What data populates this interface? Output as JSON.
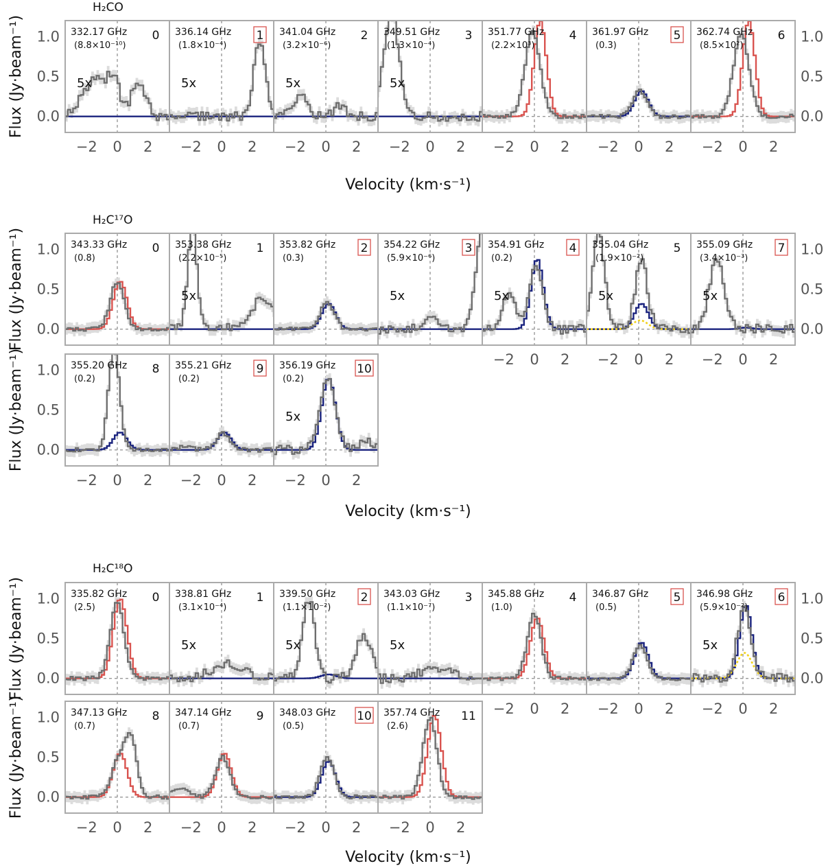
{
  "figure": {
    "xlabel": "Velocity (km·s⁻¹)",
    "ylabel": "Flux (Jy·beam⁻¹)",
    "yticks": [
      "0.0",
      "0.5",
      "1.0"
    ],
    "xticks": [
      "−2",
      "0",
      "2"
    ]
  },
  "chart_data": [
    {
      "type": "line",
      "title": "H₂CO",
      "xlim": [
        -3.4,
        3.4
      ],
      "ylim": [
        -0.2,
        1.2
      ],
      "panels": [
        {
          "index": "0",
          "freq": "332.17 GHz",
          "aux": "(8.8×10⁻¹⁰)",
          "scale": "5x",
          "boxed": false,
          "obs": {
            "peak": 0.48,
            "center": -1.5,
            "width": 0.8,
            "extra": [
              [
                1.3,
                0.42,
                0.45
              ],
              [
                -0.3,
                0.35,
                0.4
              ]
            ]
          },
          "model": {
            "color": "navy",
            "peak": 0.0,
            "center": 0,
            "width": 0.5
          }
        },
        {
          "index": "1",
          "freq": "336.14 GHz",
          "aux": "(1.8×10⁻⁴)",
          "scale": "5x",
          "boxed": true,
          "obs": {
            "peak": 0.9,
            "center": 2.4,
            "width": 0.4,
            "extra": []
          },
          "model": {
            "color": "navy",
            "peak": 0.0,
            "center": 0,
            "width": 0.5
          }
        },
        {
          "index": "2",
          "freq": "341.04 GHz",
          "aux": "(3.2×10⁻⁶)",
          "scale": "5x",
          "boxed": false,
          "obs": {
            "peak": 0.25,
            "center": -1.8,
            "width": 0.5,
            "extra": [
              [
                0.8,
                0.12,
                0.4
              ]
            ]
          },
          "model": {
            "color": "navy",
            "peak": 0.0,
            "center": 0,
            "width": 0.5
          }
        },
        {
          "index": "3",
          "freq": "349.51 GHz",
          "aux": "(1.3×10⁻⁴)",
          "scale": "5x",
          "boxed": false,
          "obs": {
            "peak": 1.3,
            "center": -2.6,
            "width": 0.5,
            "extra": []
          },
          "model": {
            "color": "navy",
            "peak": 0.0,
            "center": 0,
            "width": 0.5
          }
        },
        {
          "index": "4",
          "freq": "351.77 GHz",
          "aux": "(2.2×10³)",
          "scale": "",
          "boxed": false,
          "obs": {
            "peak": 1.05,
            "center": -0.2,
            "width": 0.5,
            "extra": []
          },
          "model": {
            "color": "red",
            "peak": 1.2,
            "center": 0.3,
            "width": 0.4
          }
        },
        {
          "index": "5",
          "freq": "361.97 GHz",
          "aux": "(0.3)",
          "scale": "",
          "boxed": true,
          "obs": {
            "peak": 0.32,
            "center": 0.0,
            "width": 0.45,
            "extra": []
          },
          "model": {
            "color": "navy",
            "peak": 0.32,
            "center": 0.1,
            "width": 0.45
          }
        },
        {
          "index": "6",
          "freq": "362.74 GHz",
          "aux": "(8.5×10²)",
          "scale": "",
          "boxed": false,
          "obs": {
            "peak": 1.05,
            "center": -0.2,
            "width": 0.5,
            "extra": []
          },
          "model": {
            "color": "red",
            "peak": 1.2,
            "center": 0.3,
            "width": 0.4
          }
        }
      ]
    },
    {
      "type": "line",
      "title": "H₂C¹⁷O",
      "xlim": [
        -3.4,
        3.4
      ],
      "ylim": [
        -0.2,
        1.2
      ],
      "panels": [
        {
          "index": "0",
          "freq": "343.33 GHz",
          "aux": "(0.8)",
          "scale": "",
          "boxed": false,
          "obs": {
            "peak": 0.58,
            "center": -0.1,
            "width": 0.45,
            "extra": []
          },
          "model": {
            "color": "red",
            "peak": 0.6,
            "center": 0.1,
            "width": 0.45
          }
        },
        {
          "index": "1",
          "freq": "353.38 GHz",
          "aux": "(2.2×10⁻⁵)",
          "scale": "5x",
          "boxed": false,
          "obs": {
            "peak": 1.3,
            "center": -2.0,
            "width": 0.3,
            "extra": [
              [
                2.5,
                0.35,
                0.8
              ]
            ]
          },
          "model": {
            "color": "navy",
            "peak": 0.0,
            "center": 0,
            "width": 0.5
          }
        },
        {
          "index": "2",
          "freq": "353.82 GHz",
          "aux": "(0.3)",
          "scale": "",
          "boxed": true,
          "obs": {
            "peak": 0.34,
            "center": 0.0,
            "width": 0.45,
            "extra": []
          },
          "model": {
            "color": "navy",
            "peak": 0.32,
            "center": 0.1,
            "width": 0.45
          }
        },
        {
          "index": "3",
          "freq": "354.22 GHz",
          "aux": "(5.9×10⁻⁶)",
          "scale": "5x",
          "boxed": true,
          "obs": {
            "peak": 1.3,
            "center": 3.3,
            "width": 0.4,
            "extra": [
              [
                0.0,
                0.2,
                0.3
              ]
            ]
          },
          "model": {
            "color": "navy",
            "peak": 0.0,
            "center": 0,
            "width": 0.5
          }
        },
        {
          "index": "4",
          "freq": "354.91 GHz",
          "aux": "(0.2)",
          "scale": "5x",
          "boxed": true,
          "obs": {
            "peak": 0.78,
            "center": 0.0,
            "width": 0.45,
            "extra": [
              [
                -1.7,
                0.45,
                0.4
              ]
            ]
          },
          "model": {
            "color": "navy",
            "peak": 0.88,
            "center": 0.1,
            "width": 0.4
          }
        },
        {
          "index": "5",
          "freq": "355.04 GHz",
          "aux": "(1.9×10⁻²)",
          "scale": "5x",
          "boxed": false,
          "obs": {
            "peak": 0.85,
            "center": 0.1,
            "width": 0.4,
            "extra": [
              [
                -2.7,
                1.2,
                0.4
              ]
            ]
          },
          "model": {
            "color": "navy",
            "peak": 0.32,
            "center": 0.1,
            "width": 0.45
          },
          "model2": {
            "color": "yellow",
            "peak": 0.11,
            "center": 0.1,
            "width": 0.5
          }
        },
        {
          "index": "7",
          "freq": "355.09 GHz",
          "aux": "(3.4×10⁻³)",
          "scale": "5x",
          "boxed": true,
          "obs": {
            "peak": 0.85,
            "center": -1.8,
            "width": 0.5,
            "extra": []
          },
          "model": {
            "color": "navy",
            "peak": 0.02,
            "center": 0.1,
            "width": 0.4
          }
        },
        {
          "index": "8",
          "freq": "355.20 GHz",
          "aux": "(0.2)",
          "scale": "",
          "boxed": false,
          "obs": {
            "peak": 1.3,
            "center": -0.3,
            "width": 0.35,
            "extra": []
          },
          "model": {
            "color": "navy",
            "peak": 0.22,
            "center": 0.1,
            "width": 0.45
          }
        },
        {
          "index": "9",
          "freq": "355.21 GHz",
          "aux": "(0.2)",
          "scale": "",
          "boxed": true,
          "obs": {
            "peak": 0.2,
            "center": 0.0,
            "width": 0.45,
            "extra": [
              [
                -2.5,
                0.04,
                0.5
              ]
            ]
          },
          "model": {
            "color": "navy",
            "peak": 0.22,
            "center": 0.1,
            "width": 0.45
          }
        },
        {
          "index": "10",
          "freq": "356.19 GHz",
          "aux": "(0.2)",
          "scale": "5x",
          "boxed": true,
          "obs": {
            "peak": 0.88,
            "center": 0.0,
            "width": 0.5,
            "extra": [
              [
                2.5,
                0.1,
                0.6
              ]
            ]
          },
          "model": {
            "color": "navy",
            "peak": 0.9,
            "center": 0.1,
            "width": 0.45
          }
        }
      ]
    },
    {
      "type": "line",
      "title": "H₂C¹⁸O",
      "xlim": [
        -3.4,
        3.4
      ],
      "ylim": [
        -0.2,
        1.2
      ],
      "panels": [
        {
          "index": "0",
          "freq": "335.82 GHz",
          "aux": "(2.5)",
          "scale": "",
          "boxed": false,
          "obs": {
            "peak": 0.95,
            "center": -0.1,
            "width": 0.45,
            "extra": []
          },
          "model": {
            "color": "red",
            "peak": 1.0,
            "center": 0.1,
            "width": 0.45
          }
        },
        {
          "index": "1",
          "freq": "338.81 GHz",
          "aux": "(3.1×10⁻⁴)",
          "scale": "5x",
          "boxed": false,
          "obs": {
            "peak": 0.2,
            "center": 0.3,
            "width": 1.0,
            "extra": []
          },
          "model": {
            "color": "navy",
            "peak": 0.0,
            "center": 0,
            "width": 0.5
          }
        },
        {
          "index": "2",
          "freq": "339.50 GHz",
          "aux": "(1.1×10⁻²)",
          "scale": "5x",
          "boxed": true,
          "obs": {
            "peak": 1.0,
            "center": -1.2,
            "width": 0.4,
            "extra": [
              [
                2.4,
                0.55,
                0.5
              ]
            ]
          },
          "model": {
            "color": "navy",
            "peak": 0.05,
            "center": 0.1,
            "width": 0.5
          }
        },
        {
          "index": "3",
          "freq": "343.03 GHz",
          "aux": "(1.1×10⁻⁷)",
          "scale": "5x",
          "boxed": false,
          "obs": {
            "peak": 0.1,
            "center": 0.5,
            "width": 1.2,
            "extra": []
          },
          "model": {
            "color": "navy",
            "peak": 0.0,
            "center": 0,
            "width": 0.5
          }
        },
        {
          "index": "4",
          "freq": "345.88 GHz",
          "aux": "(1.0)",
          "scale": "",
          "boxed": false,
          "obs": {
            "peak": 0.8,
            "center": -0.1,
            "width": 0.45,
            "extra": []
          },
          "model": {
            "color": "red",
            "peak": 0.76,
            "center": 0.1,
            "width": 0.45
          }
        },
        {
          "index": "5",
          "freq": "346.87 GHz",
          "aux": "(0.5)",
          "scale": "",
          "boxed": true,
          "obs": {
            "peak": 0.4,
            "center": 0.0,
            "width": 0.45,
            "extra": []
          },
          "model": {
            "color": "navy",
            "peak": 0.45,
            "center": 0.1,
            "width": 0.45
          }
        },
        {
          "index": "6",
          "freq": "346.98 GHz",
          "aux": "(5.9×10⁻²)",
          "scale": "5x",
          "boxed": true,
          "obs": {
            "peak": 0.85,
            "center": 0.0,
            "width": 0.45,
            "extra": []
          },
          "model": {
            "color": "navy",
            "peak": 0.92,
            "center": 0.1,
            "width": 0.4
          },
          "model2": {
            "color": "yellow",
            "peak": 0.32,
            "center": 0.1,
            "width": 0.5
          }
        },
        {
          "index": "8",
          "freq": "347.13 GHz",
          "aux": "(0.7)",
          "scale": "",
          "boxed": false,
          "obs": {
            "peak": 0.6,
            "center": 0.3,
            "width": 0.6,
            "extra": [
              [
                0.9,
                0.4,
                0.3
              ]
            ]
          },
          "model": {
            "color": "red",
            "peak": 0.55,
            "center": 0.1,
            "width": 0.45
          }
        },
        {
          "index": "9",
          "freq": "347.14 GHz",
          "aux": "(0.7)",
          "scale": "",
          "boxed": false,
          "obs": {
            "peak": 0.5,
            "center": 0.0,
            "width": 0.45,
            "extra": [
              [
                -2.8,
                0.12,
                0.5
              ]
            ]
          },
          "model": {
            "color": "red",
            "peak": 0.55,
            "center": 0.1,
            "width": 0.45
          }
        },
        {
          "index": "10",
          "freq": "348.03 GHz",
          "aux": "(0.5)",
          "scale": "",
          "boxed": true,
          "obs": {
            "peak": 0.5,
            "center": 0.0,
            "width": 0.45,
            "extra": []
          },
          "model": {
            "color": "navy",
            "peak": 0.45,
            "center": 0.1,
            "width": 0.45
          }
        },
        {
          "index": "11",
          "freq": "357.74 GHz",
          "aux": "(2.6)",
          "scale": "",
          "boxed": false,
          "obs": {
            "peak": 1.0,
            "center": -0.1,
            "width": 0.45,
            "extra": []
          },
          "model": {
            "color": "red",
            "peak": 1.02,
            "center": 0.2,
            "width": 0.45
          }
        }
      ]
    }
  ],
  "colors": {
    "observed": "#6e6e6e",
    "band": "#dcdcdc",
    "navy": "#1a237e",
    "red": "#d9534f",
    "yellow": "#f2d21b",
    "frame": "#aaaaaa",
    "boxed": "#d9534f"
  }
}
